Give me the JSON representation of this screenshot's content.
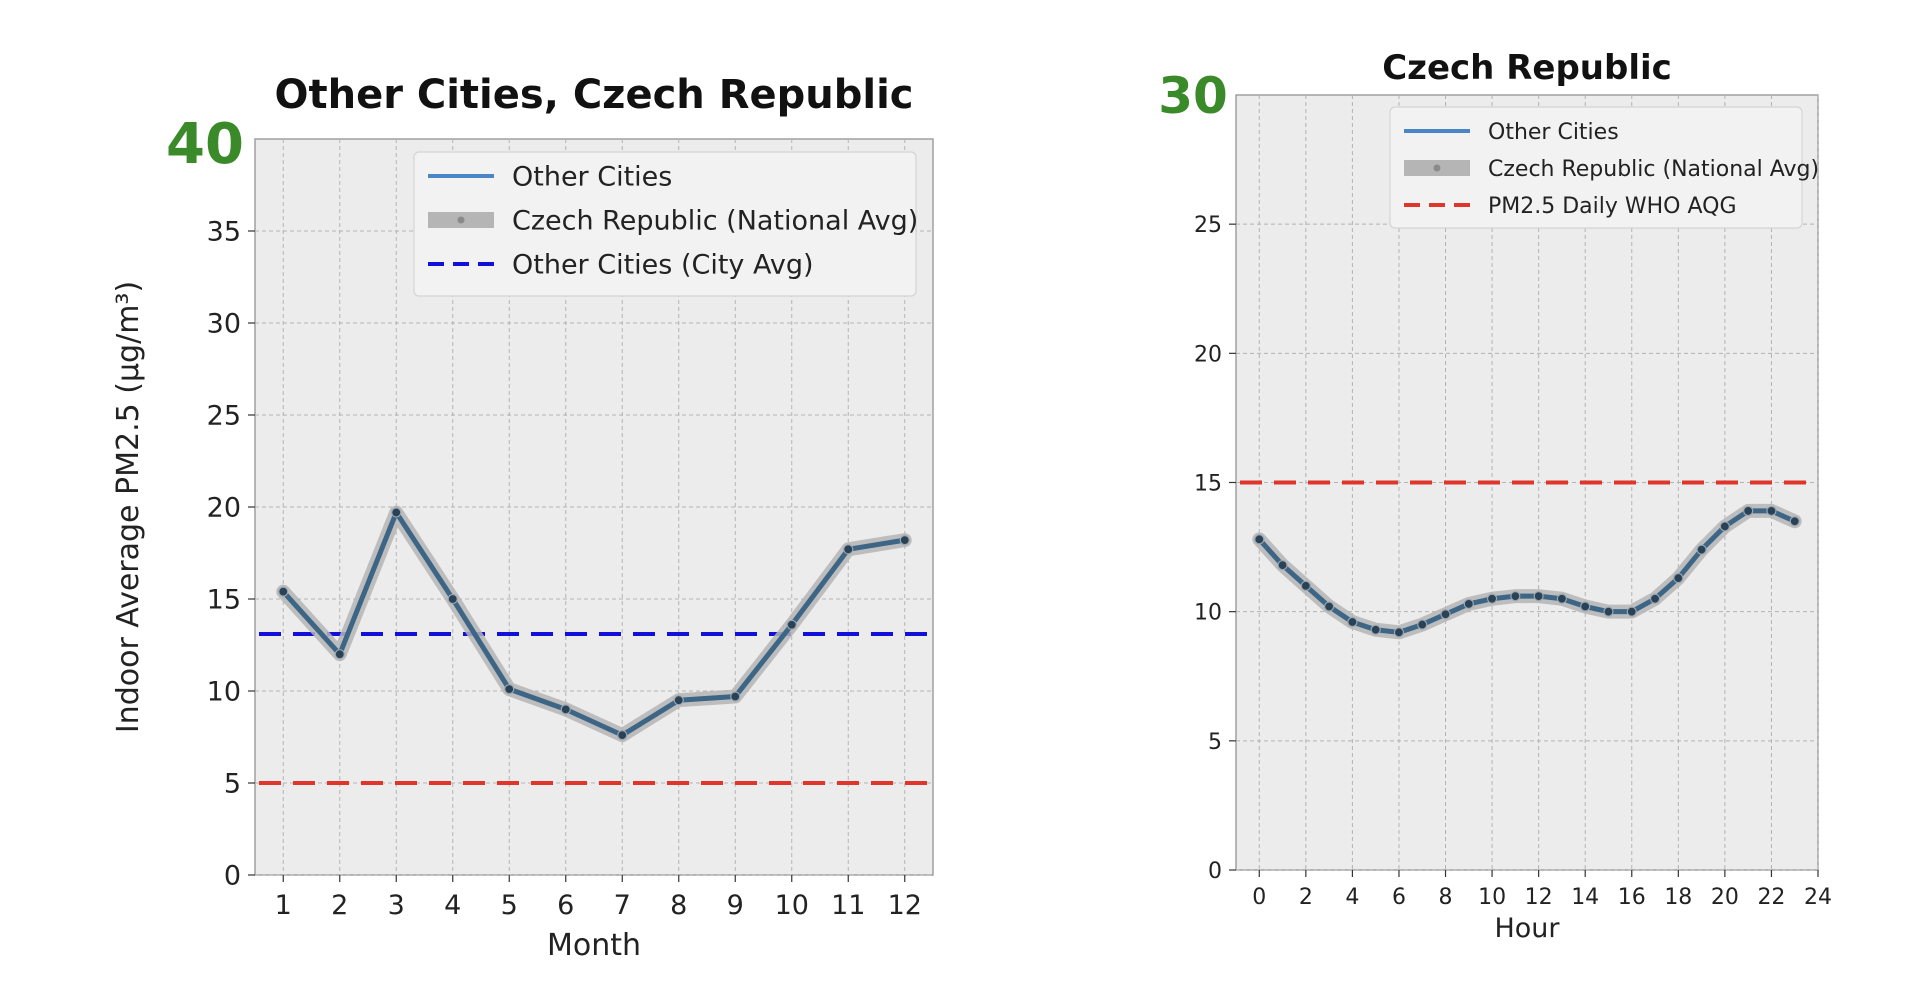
{
  "chart_data": [
    {
      "type": "line",
      "title": "Other Cities, Czech Republic",
      "corner_label": "40",
      "xlabel": "Month",
      "ylabel": "Indoor Average PM2.5 (µg/m³)",
      "xlim": [
        0.5,
        12.5
      ],
      "ylim": [
        0,
        40
      ],
      "xticks": [
        1,
        2,
        3,
        4,
        5,
        6,
        7,
        8,
        9,
        10,
        11,
        12
      ],
      "yticks": [
        0,
        5,
        10,
        15,
        20,
        25,
        30,
        35
      ],
      "grid": true,
      "legend_position": "top-right",
      "series": [
        {
          "name": "Other Cities",
          "kind": "line",
          "color": "#4a86c5",
          "x": [
            1,
            2,
            3,
            4,
            5,
            6,
            7,
            8,
            9,
            10,
            11,
            12
          ],
          "y": [
            15.4,
            12.0,
            19.7,
            15.0,
            10.1,
            9.0,
            7.6,
            9.5,
            9.7,
            13.6,
            17.7,
            18.2
          ]
        },
        {
          "name": "Czech Republic (National Avg)",
          "kind": "band",
          "color": "#b5b5b5",
          "x": [
            1,
            2,
            3,
            4,
            5,
            6,
            7,
            8,
            9,
            10,
            11,
            12
          ],
          "y": [
            15.4,
            12.0,
            19.7,
            15.0,
            10.1,
            9.0,
            7.6,
            9.5,
            9.7,
            13.6,
            17.7,
            18.2
          ]
        },
        {
          "name": "Other Cities (City Avg)",
          "kind": "hline",
          "color": "#1010d8",
          "y": 13.1
        }
      ],
      "reference_lines": [
        {
          "y": 5,
          "color": "#e0352b"
        }
      ]
    },
    {
      "type": "line",
      "title": "Czech Republic",
      "corner_label": "30",
      "xlabel": "Hour",
      "ylabel": "",
      "xlim": [
        -1,
        24
      ],
      "ylim": [
        0,
        30
      ],
      "xticks": [
        0,
        2,
        4,
        6,
        8,
        10,
        12,
        14,
        16,
        18,
        20,
        22,
        24
      ],
      "yticks": [
        0,
        5,
        10,
        15,
        20,
        25
      ],
      "grid": true,
      "legend_position": "top-right",
      "series": [
        {
          "name": "Other Cities",
          "kind": "line",
          "color": "#4a86c5",
          "x": [
            0,
            1,
            2,
            3,
            4,
            5,
            6,
            7,
            8,
            9,
            10,
            11,
            12,
            13,
            14,
            15,
            16,
            17,
            18,
            19,
            20,
            21,
            22,
            23
          ],
          "y": [
            12.8,
            11.8,
            11.0,
            10.2,
            9.6,
            9.3,
            9.2,
            9.5,
            9.9,
            10.3,
            10.5,
            10.6,
            10.6,
            10.5,
            10.2,
            10.0,
            10.0,
            10.5,
            11.3,
            12.4,
            13.3,
            13.9,
            13.9,
            13.5
          ]
        },
        {
          "name": "Czech Republic (National Avg)",
          "kind": "band",
          "color": "#b5b5b5",
          "x": [
            0,
            1,
            2,
            3,
            4,
            5,
            6,
            7,
            8,
            9,
            10,
            11,
            12,
            13,
            14,
            15,
            16,
            17,
            18,
            19,
            20,
            21,
            22,
            23
          ],
          "y": [
            12.8,
            11.8,
            11.0,
            10.2,
            9.6,
            9.3,
            9.2,
            9.5,
            9.9,
            10.3,
            10.5,
            10.6,
            10.6,
            10.5,
            10.2,
            10.0,
            10.0,
            10.5,
            11.3,
            12.4,
            13.3,
            13.9,
            13.9,
            13.5
          ]
        },
        {
          "name": "PM2.5 Daily WHO AQG",
          "kind": "hline",
          "color": "#e0352b",
          "y": 15
        }
      ]
    }
  ]
}
